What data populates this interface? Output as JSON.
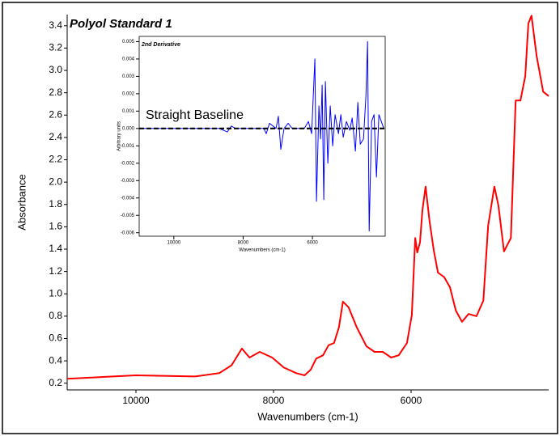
{
  "chart_data": [
    {
      "type": "line",
      "title": "Polyol Standard 1",
      "x_label": "Wavenumbers (cm-1)",
      "y_label": "Absorbance",
      "x": [
        11000,
        10000,
        9140,
        8790,
        8610,
        8460,
        8350,
        8200,
        8020,
        7850,
        7670,
        7550,
        7460,
        7380,
        7280,
        7200,
        7120,
        7050,
        6990,
        6910,
        6790,
        6650,
        6530,
        6410,
        6290,
        6180,
        6060,
        5990,
        5940,
        5910,
        5870,
        5835,
        5790,
        5730,
        5670,
        5610,
        5520,
        5435,
        5350,
        5260,
        5165,
        5050,
        4950,
        4880,
        4790,
        4730,
        4650,
        4550,
        4480,
        4410,
        4340,
        4295,
        4250,
        4175,
        4080,
        4000
      ],
      "values": [
        0.24,
        0.27,
        0.26,
        0.29,
        0.36,
        0.51,
        0.43,
        0.48,
        0.43,
        0.34,
        0.29,
        0.27,
        0.32,
        0.42,
        0.45,
        0.54,
        0.56,
        0.7,
        0.93,
        0.88,
        0.7,
        0.53,
        0.48,
        0.48,
        0.43,
        0.45,
        0.56,
        0.81,
        1.5,
        1.37,
        1.46,
        1.75,
        1.96,
        1.64,
        1.39,
        1.19,
        1.15,
        1.06,
        0.85,
        0.75,
        0.82,
        0.8,
        0.94,
        1.61,
        1.96,
        1.79,
        1.38,
        1.5,
        2.73,
        2.73,
        2.95,
        3.42,
        3.49,
        3.13,
        2.81,
        2.77
      ],
      "color": "#ff0000",
      "xlim": [
        11000,
        4000
      ],
      "xticks": [
        10000,
        8000,
        6000
      ],
      "ylim": [
        0.14,
        3.5
      ],
      "yticks": [
        0.2,
        0.4,
        0.6,
        0.8,
        {
          "value": 1,
          "label": "1.0"
        },
        1.2,
        1.4,
        1.6,
        1.8,
        {
          "value": 2,
          "label": "2.0"
        },
        2.2,
        2.4,
        2.6,
        2.8,
        {
          "value": 3,
          "label": "3.0"
        },
        3.2,
        3.4
      ]
    },
    {
      "type": "line",
      "title": "2nd Derivative",
      "x_label": "Wavenumbers (cm-1)",
      "y_label": "Arbitrary units",
      "annotation": "Straight Baseline",
      "baseline": 0,
      "x": [
        11000,
        8690,
        8456,
        8339,
        8222,
        7400,
        7333,
        7240,
        7050,
        6982,
        6912,
        6819,
        6700,
        6585,
        6234,
        6117,
        6023,
        5930,
        5883,
        5813,
        5766,
        5719,
        5673,
        5626,
        5556,
        5485,
        5415,
        5345,
        5251,
        5181,
        5111,
        5018,
        4924,
        4854,
        4760,
        4690,
        4620,
        4526,
        4456,
        4409,
        4363,
        4292,
        4222,
        4152,
        4082,
        4012,
        3942
      ],
      "values": [
        0,
        0,
        -0.0002,
        0.00014,
        0,
        0,
        -0.0003,
        0.0003,
        0,
        0.0007,
        -0.0012,
        0,
        0.0003,
        0,
        0,
        0.0004,
        -0.0003,
        0.004,
        -0.0042,
        0.0013,
        -0.0006,
        0.0025,
        -0.0041,
        0.0027,
        -0.002,
        0.0013,
        -0.001,
        0.0008,
        -0.0003,
        0.0008,
        -0.0005,
        0.0004,
        -0.0001,
        0.0006,
        -0.0013,
        0.0015,
        -0.0009,
        -0.0006,
        0.0019,
        0.005,
        -0.0059,
        0.0004,
        0.0008,
        -0.0028,
        0.0008,
        0.0004,
        0
      ],
      "color": "#0000ff",
      "xlim": [
        11000,
        3900
      ],
      "xticks": [
        10000,
        8000,
        6000
      ],
      "ylim": [
        -0.0062,
        0.0053
      ],
      "yticks": [
        0.005,
        0.004,
        0.003,
        0.002,
        0.001,
        {
          "value": 0,
          "label": "0.000"
        },
        -0.001,
        -0.002,
        -0.003,
        -0.004,
        -0.005,
        -0.006
      ]
    }
  ]
}
